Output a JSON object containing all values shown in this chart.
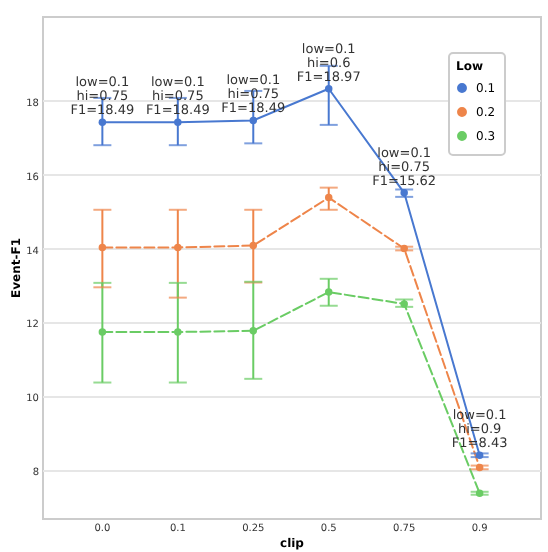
{
  "chart_data": {
    "type": "line",
    "xlabel": "clip",
    "ylabel": "Event-F1",
    "legend_title": "Low",
    "legend": "top right",
    "grid": "y",
    "marker": "circle",
    "categories": [
      "0.0",
      "0.1",
      "0.25",
      "0.5",
      "0.75",
      "0.9"
    ],
    "ylim": [
      6.7,
      20.3
    ],
    "yticks": [
      8,
      10,
      12,
      14,
      16,
      18
    ],
    "series": [
      {
        "name": "0.1",
        "color": "#4878d0",
        "line_style": "solid",
        "values": [
          17.42,
          17.42,
          17.47,
          18.33,
          15.51,
          8.4
        ],
        "errors": [
          [
            16.8,
            18.08
          ],
          [
            16.8,
            18.08
          ],
          [
            16.85,
            18.27
          ],
          [
            17.35,
            18.95
          ],
          [
            15.4,
            15.6
          ],
          [
            8.35,
            8.45
          ]
        ]
      },
      {
        "name": "0.2",
        "color": "#ee854a",
        "line_style": "dashed",
        "values": [
          14.03,
          14.03,
          14.08,
          15.38,
          14.0,
          8.07
        ],
        "errors": [
          [
            12.95,
            15.05
          ],
          [
            12.67,
            15.05
          ],
          [
            13.08,
            15.05
          ],
          [
            15.05,
            15.65
          ],
          [
            13.95,
            14.05
          ],
          [
            8.02,
            8.12
          ]
        ]
      },
      {
        "name": "0.3",
        "color": "#6acc64",
        "line_style": "dashed",
        "values": [
          11.74,
          11.74,
          11.77,
          12.82,
          12.5,
          7.37
        ],
        "errors": [
          [
            10.37,
            13.07
          ],
          [
            10.37,
            13.07
          ],
          [
            10.47,
            13.1
          ],
          [
            12.45,
            13.18
          ],
          [
            12.42,
            12.62
          ],
          [
            7.33,
            7.41
          ]
        ]
      }
    ],
    "annotations": [
      {
        "text": "low=0.1\nhi=0.75\nF1=18.49",
        "x": "0.0",
        "y": 17.42
      },
      {
        "text": "low=0.1\nhi=0.75\nF1=18.49",
        "x": "0.1",
        "y": 17.42
      },
      {
        "text": "low=0.1\nhi=0.75\nF1=18.49",
        "x": "0.25",
        "y": 17.47
      },
      {
        "text": "low=0.1\nhi=0.6\nF1=18.97",
        "x": "0.5",
        "y": 18.33
      },
      {
        "text": "low=0.1\nhi=0.75\nF1=15.62",
        "x": "0.75",
        "y": 15.51
      },
      {
        "text": "low=0.1\nhi=0.9\nF1=8.43",
        "x": "0.9",
        "y": 8.4
      }
    ]
  }
}
